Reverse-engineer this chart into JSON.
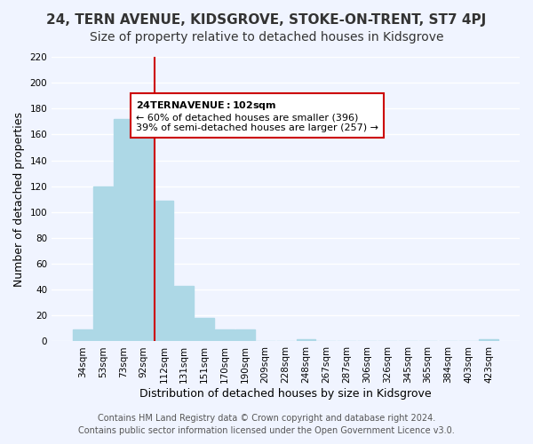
{
  "title": "24, TERN AVENUE, KIDSGROVE, STOKE-ON-TRENT, ST7 4PJ",
  "subtitle": "Size of property relative to detached houses in Kidsgrove",
  "xlabel": "Distribution of detached houses by size in Kidsgrove",
  "ylabel": "Number of detached properties",
  "bar_labels": [
    "34sqm",
    "53sqm",
    "73sqm",
    "92sqm",
    "112sqm",
    "131sqm",
    "151sqm",
    "170sqm",
    "190sqm",
    "209sqm",
    "228sqm",
    "248sqm",
    "267sqm",
    "287sqm",
    "306sqm",
    "326sqm",
    "345sqm",
    "365sqm",
    "384sqm",
    "403sqm",
    "423sqm"
  ],
  "bar_heights": [
    9,
    120,
    172,
    170,
    109,
    43,
    18,
    9,
    9,
    0,
    0,
    2,
    0,
    0,
    0,
    0,
    0,
    0,
    0,
    0,
    2
  ],
  "bar_color": "#add8e6",
  "highlight_bar_index": 4,
  "highlight_color": "#add8e6",
  "vline_x": 4,
  "vline_color": "#cc0000",
  "annotation_title": "24 TERN AVENUE: 102sqm",
  "annotation_line1": "← 60% of detached houses are smaller (396)",
  "annotation_line2": "39% of semi-detached houses are larger (257) →",
  "annotation_box_color": "#ffffff",
  "annotation_box_edge": "#cc0000",
  "ylim": [
    0,
    220
  ],
  "yticks": [
    0,
    20,
    40,
    60,
    80,
    100,
    120,
    140,
    160,
    180,
    200,
    220
  ],
  "footer_line1": "Contains HM Land Registry data © Crown copyright and database right 2024.",
  "footer_line2": "Contains public sector information licensed under the Open Government Licence v3.0.",
  "bg_color": "#f0f4ff",
  "grid_color": "#ffffff",
  "title_fontsize": 11,
  "subtitle_fontsize": 10,
  "axis_label_fontsize": 9,
  "tick_fontsize": 7.5,
  "footer_fontsize": 7
}
